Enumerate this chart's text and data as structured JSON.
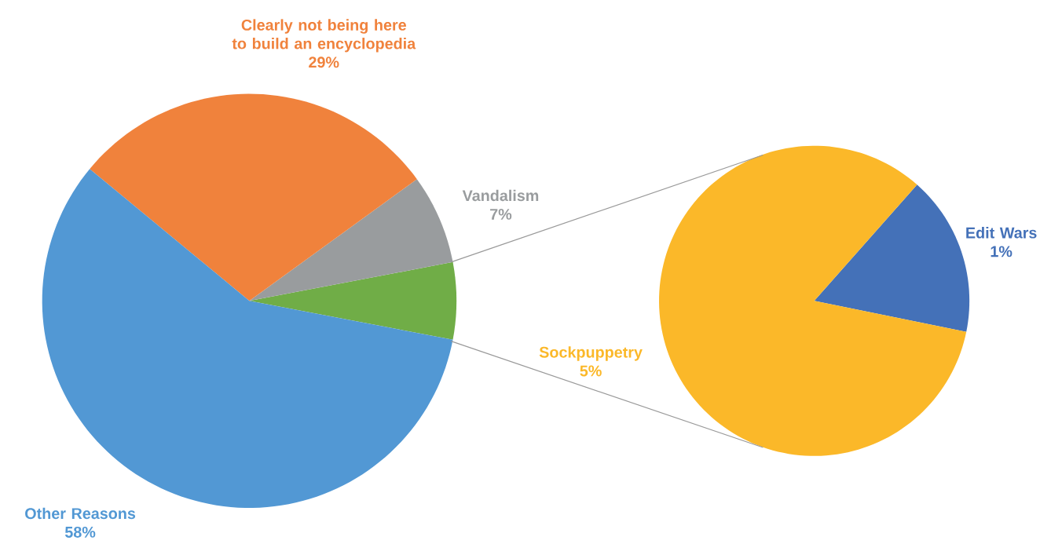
{
  "chart_data": [
    {
      "type": "pie",
      "categories": [
        null,
        "Vandalism",
        "Clearly not being here to build an encyclopedia",
        "Other Reasons"
      ],
      "values": [
        6,
        7,
        29,
        58
      ],
      "colors": [
        "#70ad47",
        "#999c9e",
        "#f0823c",
        "#5298d4"
      ],
      "value_labels": [
        null,
        "7%",
        "29%",
        "58%"
      ]
    },
    {
      "type": "pie",
      "categories": [
        "Edit Wars",
        "Sockpuppetry"
      ],
      "values": [
        1,
        5
      ],
      "colors": [
        "#4471b8",
        "#fbb829"
      ],
      "value_labels": [
        "1%",
        "5%"
      ]
    }
  ]
}
